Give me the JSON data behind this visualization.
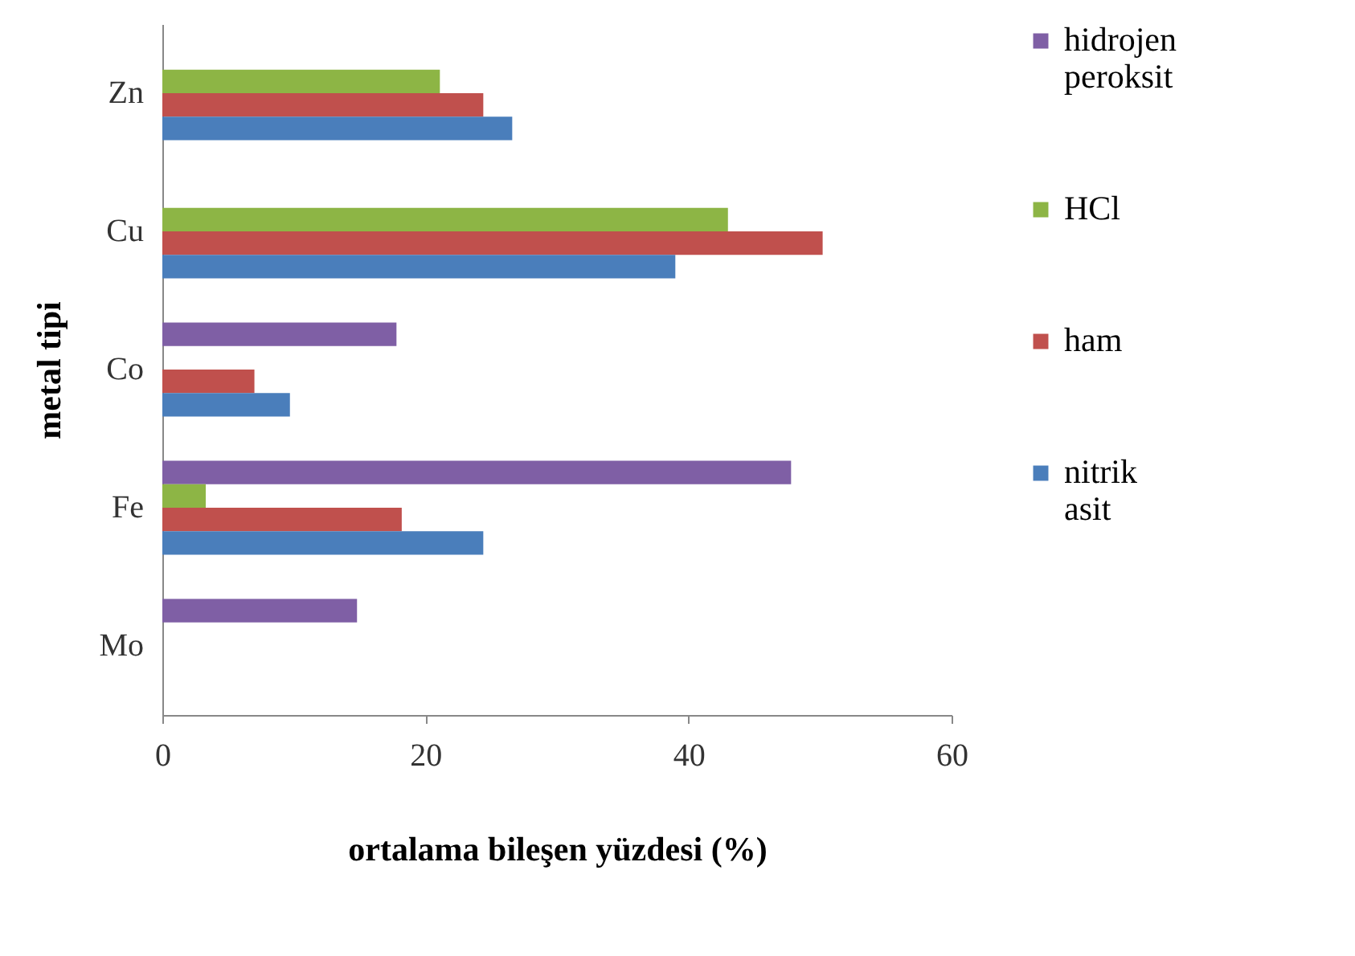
{
  "chart_data": {
    "type": "bar",
    "orientation": "horizontal",
    "xlabel": "ortalama bileşen yüzdesi (%)",
    "ylabel": "metal tipi",
    "categories": [
      "Zn",
      "Cu",
      "Co",
      "Fe",
      "Mo"
    ],
    "series": [
      {
        "name": "hidrojen peroksit",
        "color": "#7f5fa5",
        "values": [
          null,
          null,
          17.8,
          47.8,
          14.8
        ]
      },
      {
        "name": "HCl",
        "color": "#8db545",
        "values": [
          21.1,
          43.0,
          null,
          3.3,
          null
        ]
      },
      {
        "name": "ham",
        "color": "#c0504d",
        "values": [
          24.4,
          50.2,
          7.0,
          18.2,
          null
        ]
      },
      {
        "name": "nitrik asit",
        "color": "#4a7ebb",
        "values": [
          26.6,
          39.0,
          9.7,
          24.4,
          null
        ]
      }
    ],
    "xlim": [
      0,
      60
    ],
    "xticks": [
      0,
      20,
      40,
      60
    ],
    "grid": false,
    "legend": "right"
  }
}
